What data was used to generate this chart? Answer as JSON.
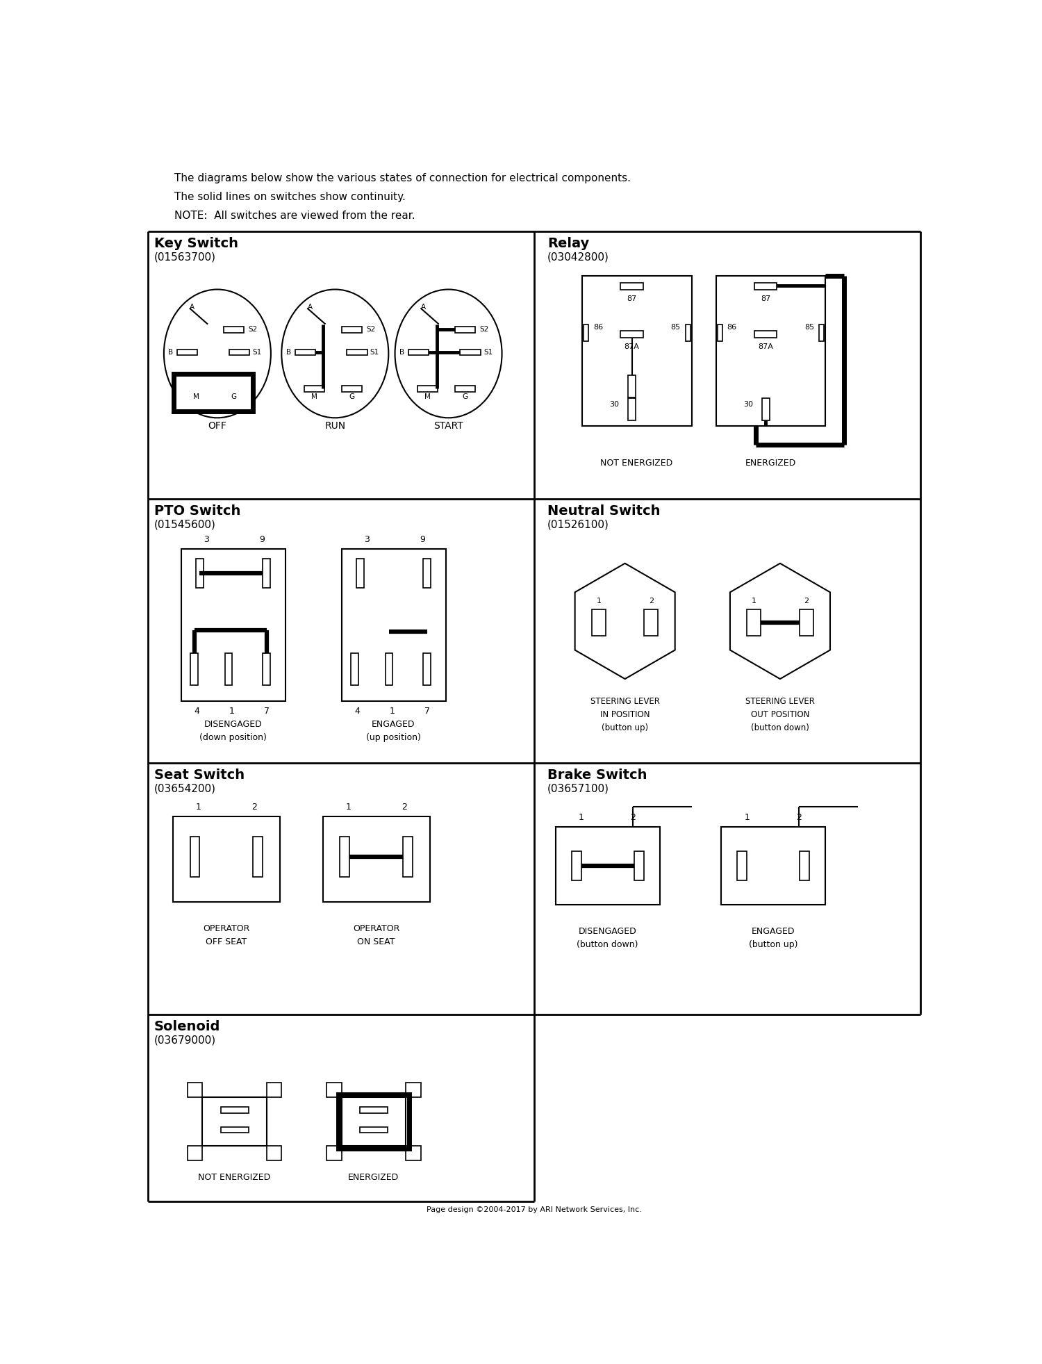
{
  "bg_color": "#ffffff",
  "header": [
    "The diagrams below show the various states of connection for electrical components.",
    "The solid lines on switches show continuity.",
    "NOTE:  All switches are viewed from the rear."
  ],
  "footer": "Page design ©2004-2017 by ARI Network Services, Inc.",
  "key_switch": {
    "name": "Key Switch",
    "part": "(01563700)"
  },
  "relay": {
    "name": "Relay",
    "part": "(03042800)"
  },
  "pto": {
    "name": "PTO Switch",
    "part": "(01545600)"
  },
  "neutral": {
    "name": "Neutral Switch",
    "part": "(01526100)"
  },
  "seat": {
    "name": "Seat Switch",
    "part": "(03654200)"
  },
  "brake": {
    "name": "Brake Switch",
    "part": "(03657100)"
  },
  "solenoid": {
    "name": "Solenoid",
    "part": "(03679000)"
  }
}
